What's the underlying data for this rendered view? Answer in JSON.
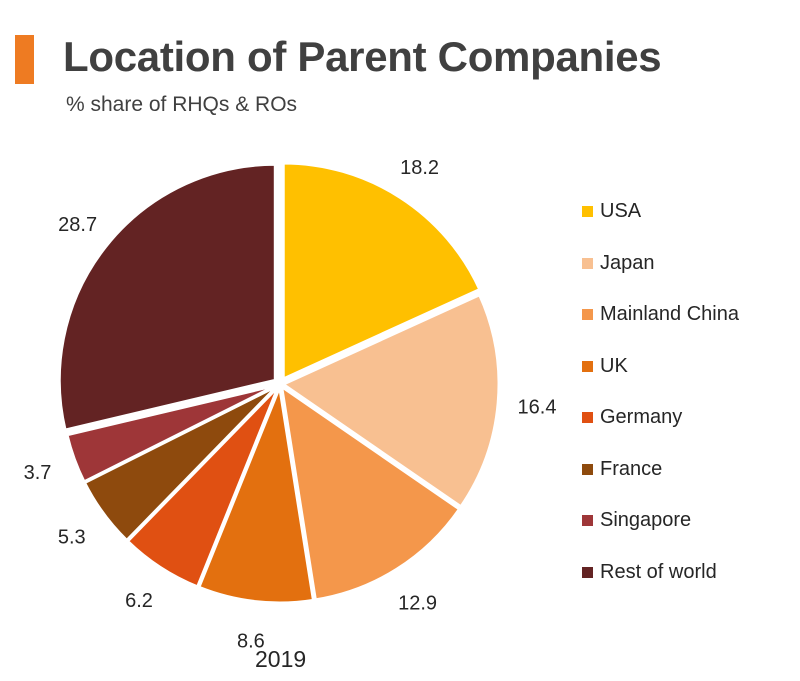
{
  "header": {
    "title": "Location of Parent Companies",
    "subtitle": "% share of RHQs & ROs",
    "accent_color": "#EE7B22"
  },
  "chart_data": {
    "type": "pie",
    "title": "Location of Parent Companies",
    "subtitle": "% share of RHQs & ROs",
    "caption": "2019",
    "legend_position": "right",
    "categories": [
      "USA",
      "Japan",
      "Mainland China",
      "UK",
      "Germany",
      "France",
      "Singapore",
      "Rest of world"
    ],
    "values": [
      18.2,
      16.4,
      12.9,
      8.6,
      6.2,
      5.3,
      3.7,
      28.7
    ],
    "labels": [
      "18.2",
      "16.4",
      "12.9",
      "8.6",
      "6.2",
      "5.3",
      "3.7",
      "28.7"
    ],
    "colors": [
      "#FFC000",
      "#F8C091",
      "#F4974B",
      "#E3700F",
      "#E05012",
      "#8E4A0D",
      "#9E3638",
      "#632323"
    ],
    "exploded": [
      "USA",
      "Rest of world"
    ]
  }
}
